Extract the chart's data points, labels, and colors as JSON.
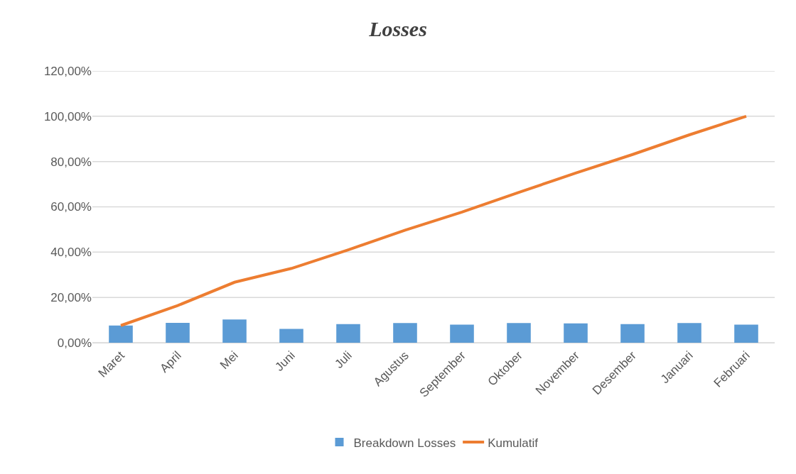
{
  "chart_data": {
    "type": "bar",
    "title": "Losses",
    "categories": [
      "Maret",
      "April",
      "Mei",
      "Juni",
      "Juli",
      "Agustus",
      "September",
      "Oktober",
      "November",
      "Desember",
      "Januari",
      "Februari"
    ],
    "series": [
      {
        "name": "Breakdown Losses",
        "color": "#5b9bd5",
        "values": [
          7.6,
          8.8,
          10.3,
          6.1,
          8.2,
          8.7,
          8.0,
          8.7,
          8.5,
          8.2,
          8.7,
          8.0
        ]
      },
      {
        "name": "Kumulatif",
        "type": "line",
        "color": "#ed7d31",
        "values": [
          7.6,
          16.4,
          26.7,
          32.8,
          41.0,
          49.7,
          57.7,
          66.4,
          74.9,
          83.1,
          91.8,
          100
        ]
      }
    ],
    "ylim": [
      0,
      120
    ],
    "yticks": [
      {
        "value": 0,
        "label": "0,00%"
      },
      {
        "value": 20,
        "label": "20,00%"
      },
      {
        "value": 40,
        "label": "40,00%"
      },
      {
        "value": 60,
        "label": "60,00%"
      },
      {
        "value": 80,
        "label": "80,00%"
      },
      {
        "value": 100,
        "label": "100,00%"
      },
      {
        "value": 120,
        "label": "120,00%"
      }
    ],
    "grid": "y",
    "legend": "bottom",
    "marker": "none",
    "line_style": "solid"
  }
}
